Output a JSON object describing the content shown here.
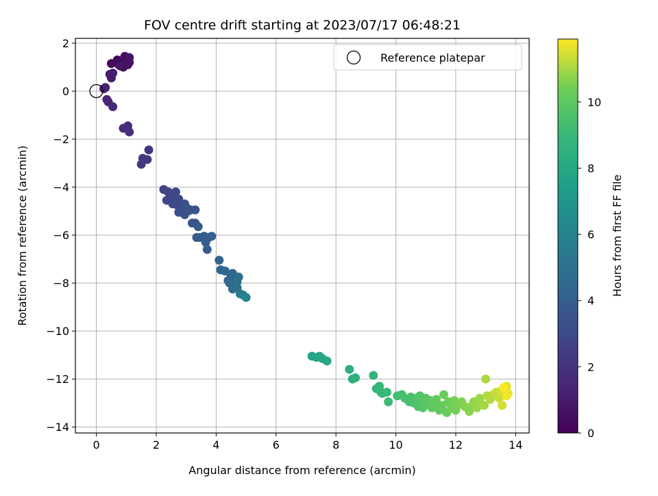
{
  "chart_data": {
    "type": "scatter",
    "title": "FOV centre drift starting at 2023/07/17 06:48:21",
    "xlabel": "Angular distance from reference (arcmin)",
    "ylabel": "Rotation from reference (arcmin)",
    "xlim": [
      -0.7,
      14.45
    ],
    "ylim": [
      -14.25,
      2.2
    ],
    "xticks": [
      0,
      2,
      4,
      6,
      8,
      10,
      12,
      14
    ],
    "yticks": [
      2,
      0,
      -2,
      -4,
      -6,
      -8,
      -10,
      -12,
      -14
    ],
    "grid": true,
    "legend": {
      "position": "top-right",
      "entries": [
        {
          "label": "Reference platepar",
          "marker": "open-circle"
        }
      ]
    },
    "reference_point": {
      "x": 0,
      "y": 0
    },
    "colorbar": {
      "label": "Hours from first FF file",
      "colormap": "viridis",
      "range": [
        0,
        11.9
      ],
      "ticks": [
        0,
        2,
        4,
        6,
        8,
        10
      ]
    },
    "point_color_note": "color = hours from first FF file",
    "points": [
      {
        "x": 0.5,
        "y": 1.15,
        "c": 0.2
      },
      {
        "x": 0.7,
        "y": 1.3,
        "c": 0.3
      },
      {
        "x": 0.75,
        "y": 1.1,
        "c": 0.35
      },
      {
        "x": 0.85,
        "y": 1.2,
        "c": 0.4
      },
      {
        "x": 0.9,
        "y": 1.0,
        "c": 0.45
      },
      {
        "x": 0.95,
        "y": 1.45,
        "c": 0.5
      },
      {
        "x": 1.0,
        "y": 1.3,
        "c": 0.55
      },
      {
        "x": 1.05,
        "y": 1.1,
        "c": 0.6
      },
      {
        "x": 1.1,
        "y": 1.4,
        "c": 0.65
      },
      {
        "x": 1.1,
        "y": 1.2,
        "c": 0.7
      },
      {
        "x": 0.8,
        "y": 1.05,
        "c": 0.75
      },
      {
        "x": 0.45,
        "y": 0.7,
        "c": 0.9
      },
      {
        "x": 0.5,
        "y": 0.55,
        "c": 1.0
      },
      {
        "x": 0.55,
        "y": 0.75,
        "c": 1.05
      },
      {
        "x": 0.25,
        "y": 0.1,
        "c": 1.2
      },
      {
        "x": 0.3,
        "y": 0.15,
        "c": 1.25
      },
      {
        "x": 0.35,
        "y": -0.35,
        "c": 1.35
      },
      {
        "x": 0.4,
        "y": -0.45,
        "c": 1.4
      },
      {
        "x": 0.55,
        "y": -0.65,
        "c": 1.5
      },
      {
        "x": 0.9,
        "y": -1.55,
        "c": 1.7
      },
      {
        "x": 1.05,
        "y": -1.45,
        "c": 1.75
      },
      {
        "x": 1.1,
        "y": -1.7,
        "c": 1.8
      },
      {
        "x": 1.75,
        "y": -2.45,
        "c": 2.1
      },
      {
        "x": 1.55,
        "y": -2.8,
        "c": 2.2
      },
      {
        "x": 1.7,
        "y": -2.85,
        "c": 2.25
      },
      {
        "x": 1.5,
        "y": -3.05,
        "c": 2.3
      },
      {
        "x": 2.25,
        "y": -4.1,
        "c": 2.7
      },
      {
        "x": 2.4,
        "y": -4.2,
        "c": 2.75
      },
      {
        "x": 2.45,
        "y": -4.5,
        "c": 2.8
      },
      {
        "x": 2.35,
        "y": -4.55,
        "c": 2.85
      },
      {
        "x": 2.55,
        "y": -4.4,
        "c": 2.9
      },
      {
        "x": 2.65,
        "y": -4.2,
        "c": 2.95
      },
      {
        "x": 2.55,
        "y": -4.7,
        "c": 3.0
      },
      {
        "x": 2.75,
        "y": -4.5,
        "c": 3.05
      },
      {
        "x": 2.7,
        "y": -4.75,
        "c": 3.1
      },
      {
        "x": 2.85,
        "y": -4.85,
        "c": 3.15
      },
      {
        "x": 2.95,
        "y": -4.7,
        "c": 3.2
      },
      {
        "x": 2.75,
        "y": -5.05,
        "c": 3.25
      },
      {
        "x": 2.95,
        "y": -5.15,
        "c": 3.3
      },
      {
        "x": 3.05,
        "y": -5.0,
        "c": 3.35
      },
      {
        "x": 3.0,
        "y": -4.85,
        "c": 3.4
      },
      {
        "x": 3.15,
        "y": -4.95,
        "c": 3.45
      },
      {
        "x": 3.3,
        "y": -4.95,
        "c": 3.5
      },
      {
        "x": 3.2,
        "y": -5.5,
        "c": 3.55
      },
      {
        "x": 3.3,
        "y": -5.5,
        "c": 3.6
      },
      {
        "x": 3.4,
        "y": -5.65,
        "c": 3.65
      },
      {
        "x": 3.35,
        "y": -6.1,
        "c": 3.75
      },
      {
        "x": 3.45,
        "y": -6.1,
        "c": 3.8
      },
      {
        "x": 3.6,
        "y": -6.05,
        "c": 3.85
      },
      {
        "x": 3.65,
        "y": -6.3,
        "c": 3.9
      },
      {
        "x": 3.7,
        "y": -6.6,
        "c": 3.95
      },
      {
        "x": 3.75,
        "y": -6.1,
        "c": 4.0
      },
      {
        "x": 3.85,
        "y": -6.05,
        "c": 4.05
      },
      {
        "x": 4.1,
        "y": -7.05,
        "c": 4.25
      },
      {
        "x": 4.15,
        "y": -7.45,
        "c": 4.3
      },
      {
        "x": 4.3,
        "y": -7.5,
        "c": 4.35
      },
      {
        "x": 4.4,
        "y": -7.9,
        "c": 4.4
      },
      {
        "x": 4.5,
        "y": -7.7,
        "c": 4.45
      },
      {
        "x": 4.55,
        "y": -7.6,
        "c": 4.5
      },
      {
        "x": 4.45,
        "y": -8.0,
        "c": 4.55
      },
      {
        "x": 4.6,
        "y": -8.0,
        "c": 4.6
      },
      {
        "x": 4.55,
        "y": -8.25,
        "c": 4.7
      },
      {
        "x": 4.7,
        "y": -8.2,
        "c": 4.75
      },
      {
        "x": 4.75,
        "y": -7.75,
        "c": 4.8
      },
      {
        "x": 4.7,
        "y": -7.95,
        "c": 4.9
      },
      {
        "x": 4.8,
        "y": -8.45,
        "c": 5.6
      },
      {
        "x": 4.9,
        "y": -8.5,
        "c": 5.8
      },
      {
        "x": 5.0,
        "y": -8.6,
        "c": 6.0
      },
      {
        "x": 7.2,
        "y": -11.05,
        "c": 7.8
      },
      {
        "x": 7.35,
        "y": -11.1,
        "c": 7.85
      },
      {
        "x": 7.45,
        "y": -11.05,
        "c": 7.9
      },
      {
        "x": 7.55,
        "y": -11.15,
        "c": 7.95
      },
      {
        "x": 7.7,
        "y": -11.25,
        "c": 8.0
      },
      {
        "x": 8.45,
        "y": -11.6,
        "c": 8.4
      },
      {
        "x": 8.55,
        "y": -12.0,
        "c": 8.45
      },
      {
        "x": 8.65,
        "y": -11.95,
        "c": 8.5
      },
      {
        "x": 9.25,
        "y": -11.85,
        "c": 8.8
      },
      {
        "x": 9.35,
        "y": -12.4,
        "c": 8.85
      },
      {
        "x": 9.45,
        "y": -12.3,
        "c": 8.9
      },
      {
        "x": 9.5,
        "y": -12.55,
        "c": 8.95
      },
      {
        "x": 9.55,
        "y": -12.6,
        "c": 9.0
      },
      {
        "x": 9.7,
        "y": -12.55,
        "c": 9.05
      },
      {
        "x": 9.75,
        "y": -12.95,
        "c": 9.1
      },
      {
        "x": 10.05,
        "y": -12.7,
        "c": 9.3
      },
      {
        "x": 10.2,
        "y": -12.65,
        "c": 9.35
      },
      {
        "x": 10.3,
        "y": -12.8,
        "c": 9.4
      },
      {
        "x": 10.45,
        "y": -12.95,
        "c": 9.45
      },
      {
        "x": 10.5,
        "y": -12.75,
        "c": 9.5
      },
      {
        "x": 10.6,
        "y": -13.0,
        "c": 9.55
      },
      {
        "x": 10.7,
        "y": -12.8,
        "c": 9.6
      },
      {
        "x": 10.75,
        "y": -13.15,
        "c": 9.65
      },
      {
        "x": 10.8,
        "y": -12.7,
        "c": 9.7
      },
      {
        "x": 10.85,
        "y": -12.95,
        "c": 9.75
      },
      {
        "x": 10.9,
        "y": -13.2,
        "c": 9.8
      },
      {
        "x": 11.0,
        "y": -12.8,
        "c": 9.85
      },
      {
        "x": 11.05,
        "y": -13.0,
        "c": 9.9
      },
      {
        "x": 11.15,
        "y": -12.9,
        "c": 9.95
      },
      {
        "x": 11.2,
        "y": -13.2,
        "c": 10.0
      },
      {
        "x": 11.3,
        "y": -13.05,
        "c": 10.05
      },
      {
        "x": 11.35,
        "y": -12.85,
        "c": 10.1
      },
      {
        "x": 11.45,
        "y": -13.3,
        "c": 10.15
      },
      {
        "x": 11.55,
        "y": -13.1,
        "c": 10.2
      },
      {
        "x": 11.6,
        "y": -12.65,
        "c": 10.25
      },
      {
        "x": 11.7,
        "y": -13.4,
        "c": 10.3
      },
      {
        "x": 11.75,
        "y": -12.95,
        "c": 10.35
      },
      {
        "x": 11.85,
        "y": -13.2,
        "c": 10.4
      },
      {
        "x": 11.95,
        "y": -12.9,
        "c": 10.45
      },
      {
        "x": 12.0,
        "y": -13.3,
        "c": 10.5
      },
      {
        "x": 12.1,
        "y": -13.05,
        "c": 10.55
      },
      {
        "x": 12.2,
        "y": -12.95,
        "c": 10.6
      },
      {
        "x": 12.3,
        "y": -13.15,
        "c": 10.65
      },
      {
        "x": 12.45,
        "y": -13.35,
        "c": 10.7
      },
      {
        "x": 12.55,
        "y": -13.1,
        "c": 10.75
      },
      {
        "x": 12.6,
        "y": -12.95,
        "c": 10.8
      },
      {
        "x": 12.7,
        "y": -13.2,
        "c": 10.85
      },
      {
        "x": 12.8,
        "y": -12.8,
        "c": 10.9
      },
      {
        "x": 12.85,
        "y": -13.05,
        "c": 10.95
      },
      {
        "x": 12.95,
        "y": -13.1,
        "c": 11.0
      },
      {
        "x": 13.0,
        "y": -12.0,
        "c": 11.05
      },
      {
        "x": 13.05,
        "y": -12.7,
        "c": 11.1
      },
      {
        "x": 13.15,
        "y": -12.85,
        "c": 11.15
      },
      {
        "x": 13.25,
        "y": -12.65,
        "c": 11.2
      },
      {
        "x": 13.35,
        "y": -12.55,
        "c": 11.3
      },
      {
        "x": 13.45,
        "y": -12.8,
        "c": 11.35
      },
      {
        "x": 13.5,
        "y": -12.5,
        "c": 11.4
      },
      {
        "x": 13.55,
        "y": -13.1,
        "c": 11.45
      },
      {
        "x": 13.6,
        "y": -12.6,
        "c": 11.5
      },
      {
        "x": 13.65,
        "y": -12.45,
        "c": 11.55
      },
      {
        "x": 13.7,
        "y": -12.3,
        "c": 11.6
      },
      {
        "x": 13.75,
        "y": -12.6,
        "c": 11.7
      },
      {
        "x": 13.7,
        "y": -12.7,
        "c": 11.8
      },
      {
        "x": 13.6,
        "y": -12.35,
        "c": 11.85
      }
    ]
  }
}
